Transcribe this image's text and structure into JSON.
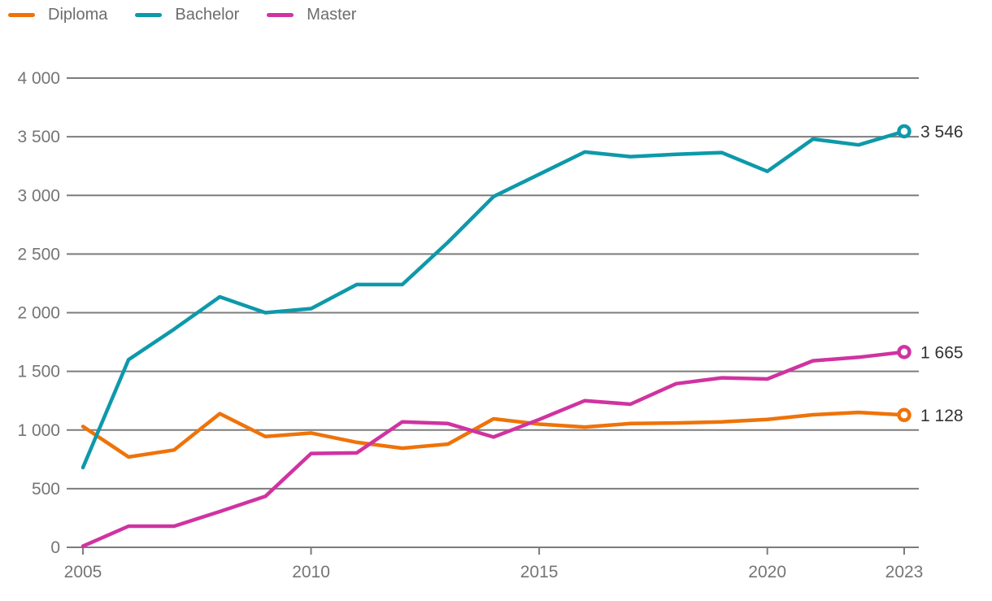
{
  "chart_data": {
    "type": "line",
    "title": "",
    "x": [
      2005,
      2006,
      2007,
      2008,
      2009,
      2010,
      2011,
      2012,
      2013,
      2014,
      2015,
      2016,
      2017,
      2018,
      2019,
      2020,
      2021,
      2022,
      2023
    ],
    "series": [
      {
        "name": "Diploma",
        "color": "#ee730a",
        "values": [
          1030,
          770,
          830,
          1140,
          945,
          975,
          895,
          845,
          880,
          1095,
          1050,
          1025,
          1055,
          1060,
          1070,
          1090,
          1130,
          1150,
          1128
        ],
        "end_label": "1 128"
      },
      {
        "name": "Bachelor",
        "color": "#0d99aa",
        "values": [
          680,
          1600,
          1860,
          2135,
          2000,
          2035,
          2240,
          2240,
          2600,
          2990,
          3180,
          3370,
          3330,
          3350,
          3365,
          3205,
          3480,
          3430,
          3546
        ],
        "end_label": "3 546"
      },
      {
        "name": "Master",
        "color": "#d033a0",
        "values": [
          10,
          180,
          180,
          305,
          435,
          800,
          805,
          1070,
          1055,
          940,
          1090,
          1250,
          1220,
          1395,
          1445,
          1435,
          1590,
          1620,
          1665
        ],
        "end_label": "1 665"
      }
    ],
    "x_ticks": [
      {
        "value": 2005,
        "label": "2005"
      },
      {
        "value": 2010,
        "label": "2010"
      },
      {
        "value": 2015,
        "label": "2015"
      },
      {
        "value": 2020,
        "label": "2020"
      },
      {
        "value": 2023,
        "label": "2023"
      }
    ],
    "y_ticks": [
      {
        "value": 0,
        "label": "0"
      },
      {
        "value": 500,
        "label": "500"
      },
      {
        "value": 1000,
        "label": "1 000"
      },
      {
        "value": 1500,
        "label": "1 500"
      },
      {
        "value": 2000,
        "label": "2 000"
      },
      {
        "value": 2500,
        "label": "2 500"
      },
      {
        "value": 3000,
        "label": "3 000"
      },
      {
        "value": 3500,
        "label": "3 500"
      },
      {
        "value": 4000,
        "label": "4 000"
      }
    ],
    "ylim": [
      0,
      4000
    ],
    "xlabel": "",
    "ylabel": "",
    "grid": "horizontal",
    "legend_position": "top-left",
    "colors": {
      "gridline": "#7c7c7c",
      "axis_text": "#757575",
      "legend_text": "#6d6d6d",
      "end_label_text": "#333333",
      "marker_fill": "#ffffff"
    }
  }
}
